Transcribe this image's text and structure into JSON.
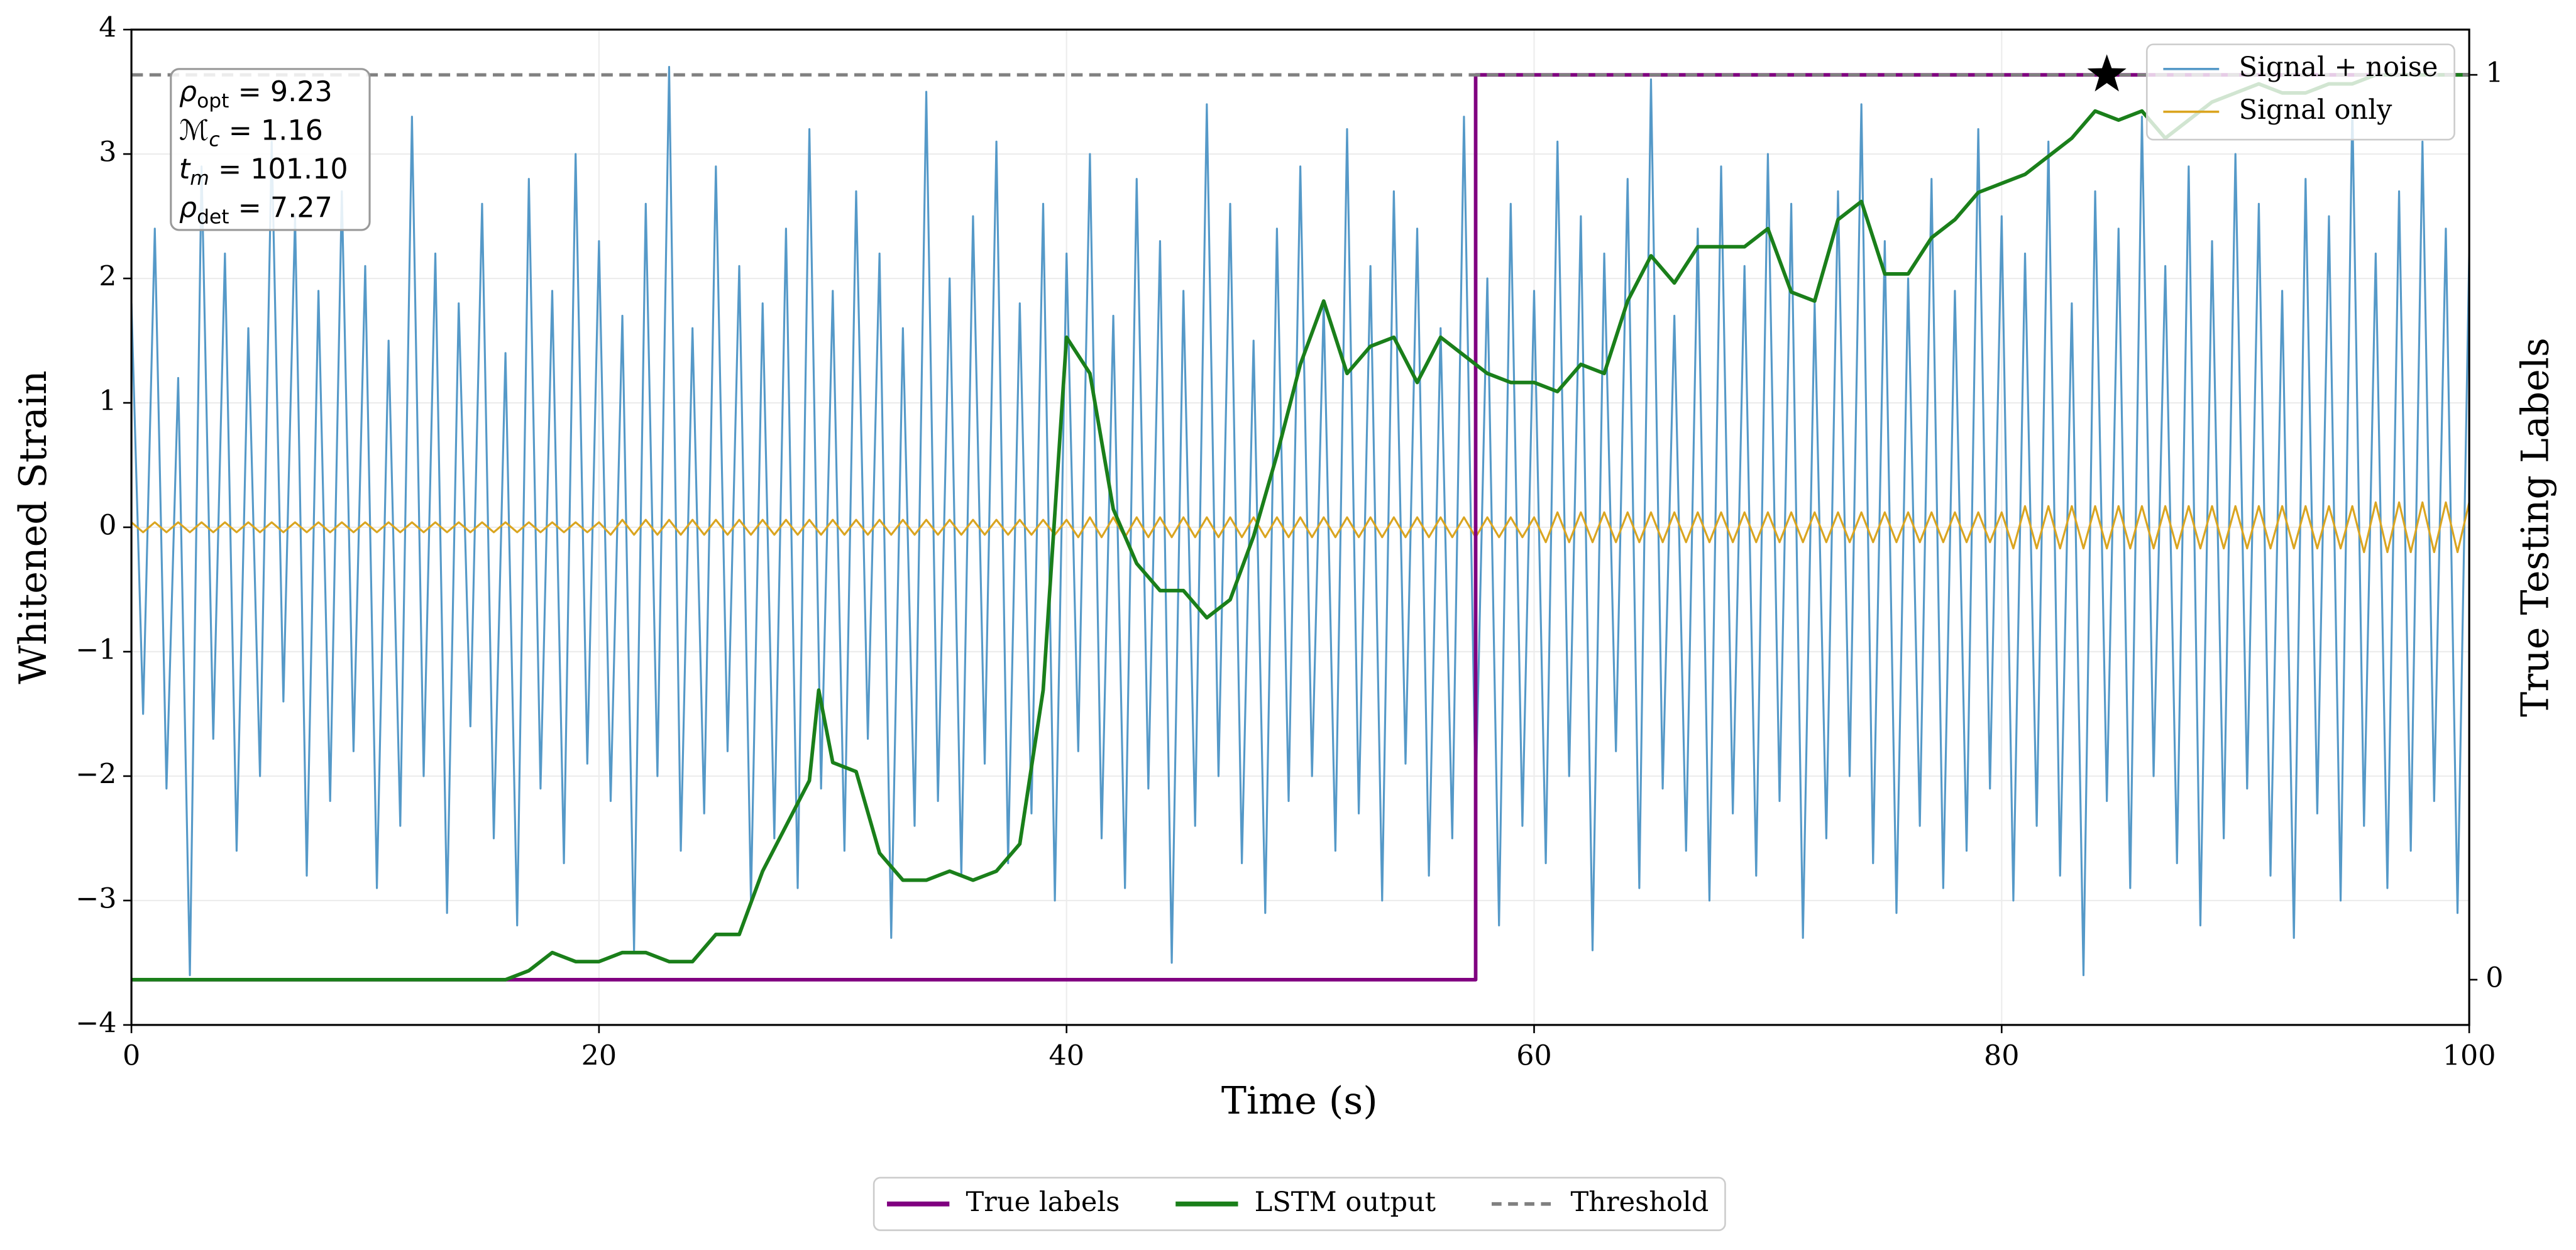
{
  "chart_data": {
    "type": "line",
    "xlabel": "Time (s)",
    "ylabel": "Whitened Strain",
    "y2label": "True Testing Labels",
    "xlim": [
      0,
      100
    ],
    "ylim": [
      -4,
      4
    ],
    "y2lim": [
      -0.05,
      1.05
    ],
    "xticks": [
      0,
      20,
      40,
      60,
      80,
      100
    ],
    "yticks": [
      {
        "value": -4,
        "label": "−4"
      },
      {
        "value": -3,
        "label": "−3"
      },
      {
        "value": -2,
        "label": "−2"
      },
      {
        "value": -1,
        "label": "−1"
      },
      0,
      1,
      2,
      3,
      4
    ],
    "y2ticks": [
      0,
      1
    ],
    "grid": true,
    "x": [
      0,
      0.5,
      1,
      1.5,
      2,
      2.5,
      3,
      3.5,
      4,
      4.5,
      5,
      5.5,
      6,
      6.5,
      7,
      7.5,
      8,
      8.5,
      9,
      9.5,
      10,
      10.5,
      11,
      11.5,
      12,
      12.5,
      13,
      13.5,
      14,
      14.5,
      15,
      15.5,
      16,
      16.5,
      17,
      17.5,
      18,
      18.5,
      19,
      19.5,
      20,
      20.5,
      21,
      21.5,
      22,
      22.5,
      23,
      23.5,
      24,
      24.5,
      25,
      25.5,
      26,
      26.5,
      27,
      27.5,
      28,
      28.5,
      29,
      29.5,
      30,
      30.5,
      31,
      31.5,
      32,
      32.5,
      33,
      33.5,
      34,
      34.5,
      35,
      35.5,
      36,
      36.5,
      37,
      37.5,
      38,
      38.5,
      39,
      39.5,
      40,
      40.5,
      41,
      41.5,
      42,
      42.5,
      43,
      43.5,
      44,
      44.5,
      45,
      45.5,
      46,
      46.5,
      47,
      47.5,
      48,
      48.5,
      49,
      49.5,
      50,
      50.5,
      51,
      51.5,
      52,
      52.5,
      53,
      53.5,
      54,
      54.5,
      55,
      55.5,
      56,
      56.5,
      57,
      57.5,
      58,
      58.5,
      59,
      59.5,
      60,
      60.5,
      61,
      61.5,
      62,
      62.5,
      63,
      63.5,
      64,
      64.5,
      65,
      65.5,
      66,
      66.5,
      67,
      67.5,
      68,
      68.5,
      69,
      69.5,
      70,
      70.5,
      71,
      71.5,
      72,
      72.5,
      73,
      73.5,
      74,
      74.5,
      75,
      75.5,
      76,
      76.5,
      77,
      77.5,
      78,
      78.5,
      79,
      79.5,
      80,
      80.5,
      81,
      81.5,
      82,
      82.5,
      83,
      83.5,
      84,
      84.5,
      85,
      85.5,
      86,
      86.5,
      87,
      87.5,
      88,
      88.5,
      89,
      89.5,
      90,
      90.5,
      91,
      91.5,
      92,
      92.5,
      93,
      93.5,
      94,
      94.5,
      95,
      95.5,
      96,
      96.5,
      97,
      97.5,
      98,
      98.5,
      99,
      99.5,
      100
    ],
    "series": [
      {
        "name": "Signal + noise",
        "color": "#5599c8",
        "axis": "y",
        "legend": "upper right",
        "values": [
          1.8,
          -1.5,
          2.4,
          -2.1,
          1.2,
          -3.6,
          2.9,
          -1.7,
          2.2,
          -2.6,
          1.6,
          -2.0,
          3.1,
          -1.4,
          2.5,
          -2.8,
          1.9,
          -2.2,
          2.7,
          -1.8,
          2.1,
          -2.9,
          1.5,
          -2.4,
          3.3,
          -2.0,
          2.2,
          -3.1,
          1.8,
          -1.6,
          2.6,
          -2.5,
          1.4,
          -3.2,
          2.8,
          -2.1,
          1.9,
          -2.7,
          3.0,
          -1.9,
          2.3,
          -2.2,
          1.7,
          -3.4,
          2.6,
          -2.0,
          3.7,
          -2.6,
          1.6,
          -2.3,
          2.9,
          -1.8,
          2.1,
          -3.0,
          1.8,
          -2.5,
          2.4,
          -2.9,
          3.2,
          -2.1,
          1.9,
          -2.6,
          2.7,
          -1.7,
          2.2,
          -3.3,
          1.6,
          -2.4,
          3.5,
          -2.2,
          2.0,
          -2.8,
          2.5,
          -1.9,
          3.1,
          -2.7,
          1.8,
          -2.3,
          2.6,
          -3.0,
          2.2,
          -1.8,
          3.0,
          -2.5,
          1.7,
          -2.9,
          2.8,
          -2.1,
          2.3,
          -3.5,
          1.9,
          -2.4,
          3.4,
          -2.0,
          2.6,
          -2.7,
          1.5,
          -3.1,
          2.4,
          -2.2,
          2.9,
          -2.0,
          1.8,
          -2.6,
          3.2,
          -2.3,
          2.1,
          -3.0,
          2.7,
          -1.9,
          2.4,
          -2.8,
          1.6,
          -2.5,
          3.3,
          -2.2,
          2.0,
          -3.2,
          2.6,
          -2.4,
          1.9,
          -2.7,
          3.1,
          -2.0,
          2.5,
          -3.4,
          2.2,
          -1.8,
          2.8,
          -2.9,
          3.6,
          -2.1,
          1.7,
          -2.6,
          2.4,
          -3.0,
          2.9,
          -2.3,
          2.1,
          -2.8,
          3.0,
          -2.2,
          2.6,
          -3.3,
          1.8,
          -2.5,
          2.7,
          -2.0,
          3.4,
          -2.7,
          2.3,
          -3.1,
          2.0,
          -2.4,
          2.8,
          -2.9,
          1.9,
          -2.6,
          3.2,
          -2.1,
          2.5,
          -3.0,
          2.2,
          -2.4,
          3.1,
          -2.8,
          1.8,
          -3.6,
          2.7,
          -2.2,
          2.4,
          -2.9,
          3.3,
          -2.0,
          2.1,
          -2.7,
          2.9,
          -3.2,
          2.3,
          -2.5,
          3.0,
          -2.1,
          2.6,
          -2.8,
          1.9,
          -3.3,
          2.8,
          -2.3,
          2.5,
          -3.0,
          3.4,
          -2.4,
          2.2,
          -2.9,
          2.7,
          -2.6,
          3.1,
          -2.2,
          2.4,
          -3.1,
          2.2
        ]
      },
      {
        "name": "Signal only",
        "color": "#daa520",
        "axis": "y",
        "legend": "upper right",
        "values": [
          0.04,
          -0.04,
          0.04,
          -0.04,
          0.04,
          -0.04,
          0.04,
          -0.04,
          0.04,
          -0.04,
          0.04,
          -0.04,
          0.04,
          -0.04,
          0.04,
          -0.04,
          0.04,
          -0.04,
          0.04,
          -0.04,
          0.04,
          -0.04,
          0.04,
          -0.04,
          0.04,
          -0.04,
          0.04,
          -0.04,
          0.04,
          -0.04,
          0.04,
          -0.04,
          0.04,
          -0.04,
          0.04,
          -0.04,
          0.04,
          -0.04,
          0.04,
          -0.04,
          0.04,
          -0.06,
          0.06,
          -0.06,
          0.06,
          -0.06,
          0.06,
          -0.06,
          0.06,
          -0.06,
          0.06,
          -0.06,
          0.06,
          -0.06,
          0.06,
          -0.06,
          0.06,
          -0.06,
          0.06,
          -0.06,
          0.06,
          -0.06,
          0.06,
          -0.06,
          0.06,
          -0.06,
          0.06,
          -0.06,
          0.06,
          -0.06,
          0.06,
          -0.06,
          0.06,
          -0.06,
          0.06,
          -0.06,
          0.06,
          -0.06,
          0.06,
          -0.06,
          0.06,
          -0.08,
          0.08,
          -0.08,
          0.08,
          -0.08,
          0.08,
          -0.08,
          0.08,
          -0.08,
          0.08,
          -0.08,
          0.08,
          -0.08,
          0.08,
          -0.08,
          0.08,
          -0.08,
          0.08,
          -0.08,
          0.08,
          -0.08,
          0.08,
          -0.08,
          0.08,
          -0.08,
          0.08,
          -0.08,
          0.08,
          -0.08,
          0.08,
          -0.08,
          0.08,
          -0.08,
          0.08,
          -0.08,
          0.08,
          -0.08,
          0.08,
          -0.08,
          0.08,
          -0.12,
          0.12,
          -0.12,
          0.12,
          -0.12,
          0.12,
          -0.12,
          0.12,
          -0.12,
          0.12,
          -0.12,
          0.12,
          -0.12,
          0.12,
          -0.12,
          0.12,
          -0.12,
          0.12,
          -0.12,
          0.12,
          -0.12,
          0.12,
          -0.12,
          0.12,
          -0.12,
          0.12,
          -0.12,
          0.12,
          -0.12,
          0.12,
          -0.12,
          0.12,
          -0.12,
          0.12,
          -0.12,
          0.12,
          -0.12,
          0.12,
          -0.12,
          0.12,
          -0.17,
          0.17,
          -0.17,
          0.17,
          -0.17,
          0.17,
          -0.17,
          0.17,
          -0.17,
          0.17,
          -0.17,
          0.17,
          -0.17,
          0.17,
          -0.17,
          0.17,
          -0.17,
          0.17,
          -0.17,
          0.17,
          -0.17,
          0.17,
          -0.17,
          0.17,
          -0.17,
          0.17,
          -0.17,
          0.17,
          -0.17,
          0.17,
          -0.2,
          0.2,
          -0.2,
          0.2,
          -0.2,
          0.2,
          -0.2,
          0.2,
          -0.2,
          0.2
        ]
      },
      {
        "name": "True labels",
        "color": "#800080",
        "axis": "y2",
        "legend": "bottom",
        "x": [
          0,
          57.5,
          57.5,
          100
        ],
        "values": [
          0,
          0,
          1,
          1
        ]
      },
      {
        "name": "LSTM output",
        "color": "#1a7f1a",
        "axis": "y2",
        "legend": "bottom",
        "x": [
          0,
          16,
          17,
          18,
          19,
          20,
          21,
          22,
          23,
          24,
          25,
          26,
          27,
          28,
          29,
          29.4,
          30,
          31,
          32,
          33,
          34,
          35,
          36,
          37,
          38,
          39,
          40,
          41,
          42,
          43,
          44,
          45,
          46,
          47,
          48,
          49,
          50,
          51,
          52,
          53,
          54,
          55,
          56,
          57,
          58,
          59,
          60,
          61,
          62,
          63,
          64,
          65,
          66,
          67,
          68,
          69,
          70,
          71,
          72,
          73,
          74,
          75,
          76,
          77,
          78,
          79,
          80,
          81,
          82,
          83,
          84,
          85,
          86,
          87,
          88,
          89,
          90,
          91,
          92,
          93,
          94,
          95,
          96,
          97,
          98,
          99,
          100
        ],
        "values": [
          0,
          0,
          0.01,
          0.03,
          0.02,
          0.02,
          0.03,
          0.03,
          0.02,
          0.02,
          0.05,
          0.05,
          0.12,
          0.17,
          0.22,
          0.32,
          0.24,
          0.23,
          0.14,
          0.11,
          0.11,
          0.12,
          0.11,
          0.12,
          0.15,
          0.32,
          0.71,
          0.67,
          0.52,
          0.46,
          0.43,
          0.43,
          0.4,
          0.42,
          0.49,
          0.58,
          0.68,
          0.75,
          0.67,
          0.7,
          0.71,
          0.66,
          0.71,
          0.69,
          0.67,
          0.66,
          0.66,
          0.65,
          0.68,
          0.67,
          0.75,
          0.8,
          0.77,
          0.81,
          0.81,
          0.81,
          0.83,
          0.76,
          0.75,
          0.84,
          0.86,
          0.78,
          0.78,
          0.82,
          0.84,
          0.87,
          0.88,
          0.89,
          0.91,
          0.93,
          0.96,
          0.95,
          0.96,
          0.93,
          0.95,
          0.97,
          0.98,
          0.99,
          0.98,
          0.98,
          0.99,
          0.99,
          1,
          1,
          1,
          1,
          1
        ]
      }
    ],
    "threshold": {
      "name": "Threshold",
      "value": 1,
      "color": "#808080",
      "axis": "y2",
      "legend": "bottom"
    },
    "marker": {
      "x": 84.5,
      "y": 1,
      "axis": "y2",
      "color": "#000000"
    },
    "annotation": [
      {
        "symbol": "ρ",
        "subscript": "opt",
        "text": " = 9.23"
      },
      {
        "symbol": "ℳ",
        "subscript": "c",
        "text": " = 1.16"
      },
      {
        "symbol": "t",
        "subscript": "m",
        "text": " = 101.10"
      },
      {
        "symbol": "ρ",
        "subscript": "det",
        "text": " = 7.27"
      }
    ]
  }
}
